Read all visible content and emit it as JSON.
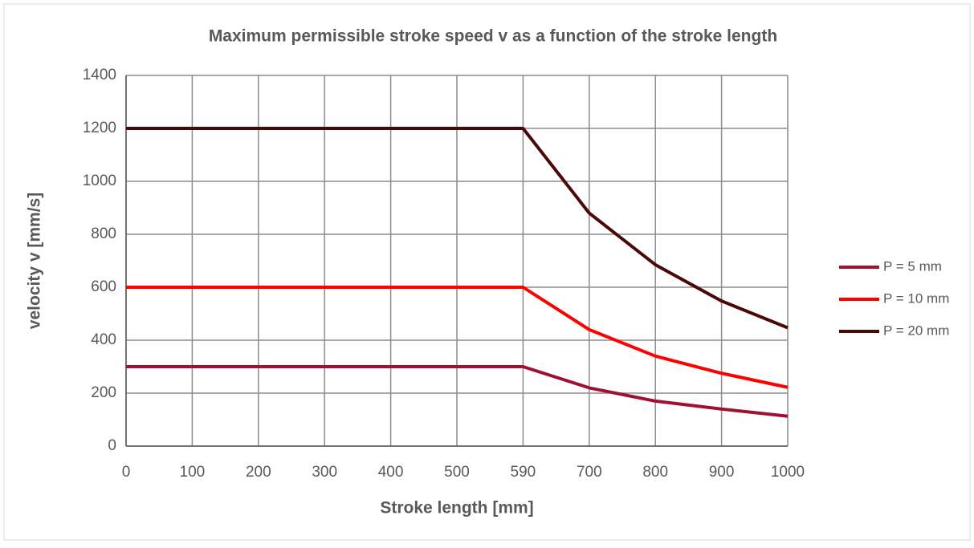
{
  "chart_data": {
    "type": "line",
    "title": "Maximum permissible stroke speed v as a function of the stroke length",
    "x_label": "Stroke length [mm]",
    "y_label": "velocity v [mm/s]",
    "categories": [
      0,
      100,
      200,
      300,
      400,
      500,
      590,
      700,
      800,
      900,
      1000
    ],
    "series": [
      {
        "name": "P = 5 mm",
        "color": "#a0102f",
        "values": [
          300,
          300,
          300,
          300,
          300,
          300,
          300,
          220,
          170,
          140,
          113
        ]
      },
      {
        "name": "P = 10 mm",
        "color": "#ff0000",
        "values": [
          600,
          600,
          600,
          600,
          600,
          600,
          600,
          440,
          340,
          275,
          222
        ]
      },
      {
        "name": "P = 20 mm",
        "color": "#4a0808",
        "values": [
          1200,
          1200,
          1200,
          1200,
          1200,
          1200,
          1200,
          880,
          685,
          548,
          447
        ]
      }
    ],
    "ylim": [
      0,
      1400
    ],
    "yticks": [
      0,
      200,
      400,
      600,
      800,
      1000,
      1200,
      1400
    ],
    "grid": true,
    "legend": "right"
  }
}
